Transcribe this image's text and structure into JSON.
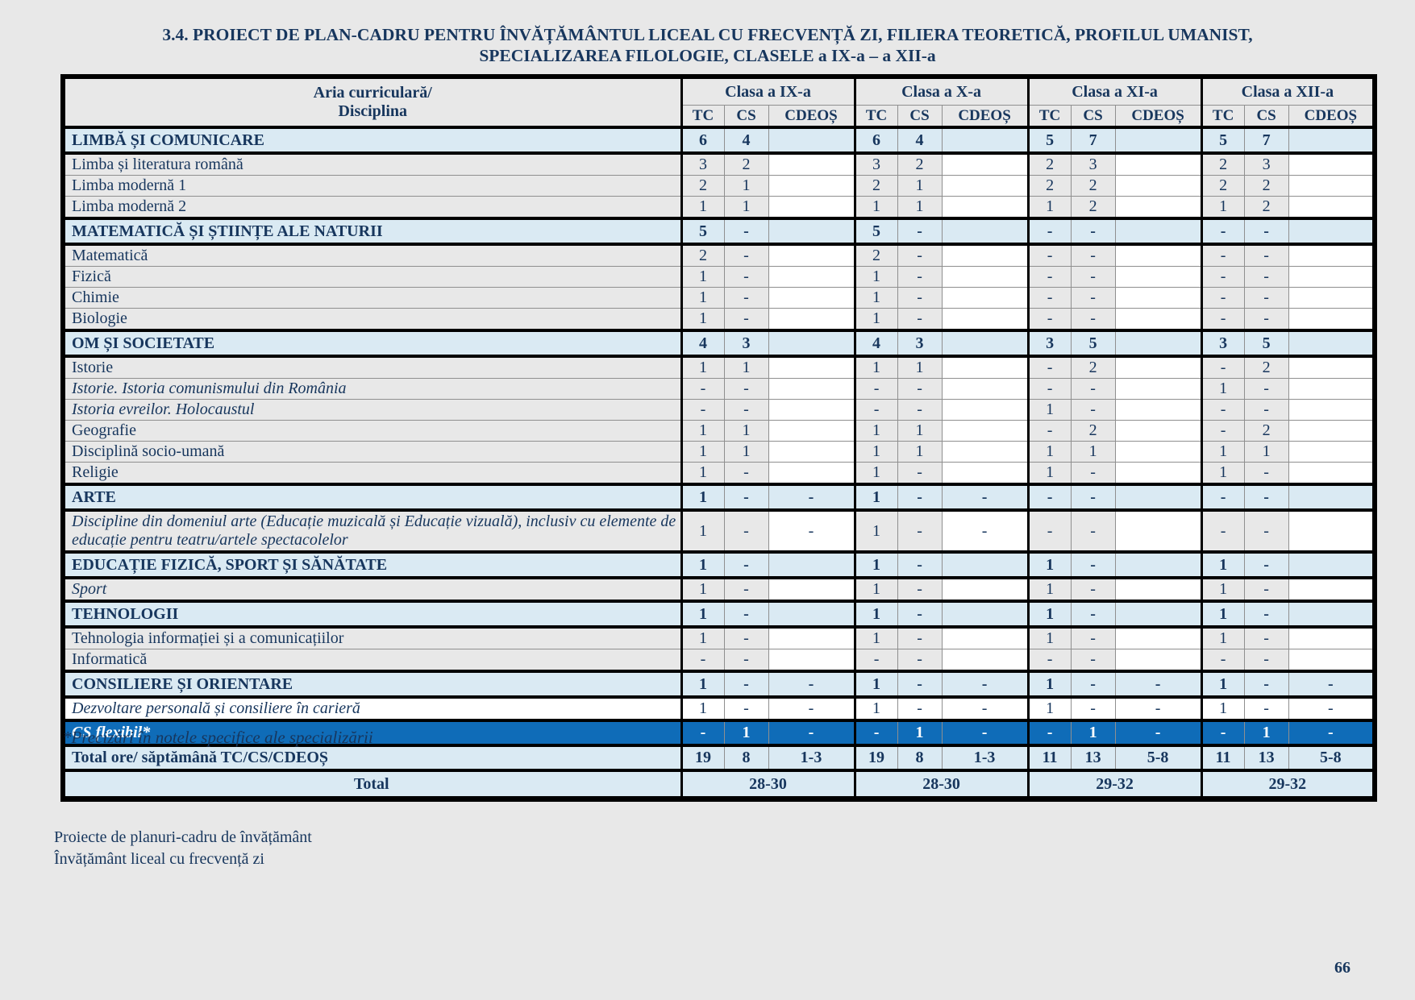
{
  "page": {
    "title_line1": "3.4. PROIECT DE PLAN-CADRU PENTRU ÎNVĂȚĂMÂNTUL LICEAL CU FRECVENȚĂ ZI, FILIERA TEORETICĂ, PROFILUL UMANIST,",
    "title_line2": "SPECIALIZAREA FILOLOGIE, CLASELE a IX-a – a XII-a",
    "footnote": "*Precizări în notele specifice ale specializării",
    "footer_line1": "Proiecte de planuri-cadru de învățământ",
    "footer_line2": "Învățământ liceal cu frecvență zi",
    "page_number": "66"
  },
  "colors": {
    "page_background": "#E8E8E8",
    "text_navy": "#17365D",
    "section_blue": "#DAEAF3",
    "flexibil_blue": "#0F6CB8",
    "row_gray": "#E8E8E8",
    "cdeos_white": "#FFFFFF",
    "thick_border": "#000000",
    "thin_border": "#8F8F8F"
  },
  "table": {
    "corner_header_line1": "Aria curriculară/",
    "corner_header_line2": "Disciplina",
    "class_headers": [
      "Clasa a IX-a",
      "Clasa a X-a",
      "Clasa a XI-a",
      "Clasa a XII-a"
    ],
    "sub_headers": [
      "TC",
      "CS",
      "CDEOȘ"
    ],
    "rows": [
      {
        "label": "LIMBĂ ȘI COMUNICARE",
        "type": "section",
        "sep": true,
        "cells": [
          "6",
          "4",
          "",
          "6",
          "4",
          "",
          "5",
          "7",
          "",
          "5",
          "7",
          ""
        ]
      },
      {
        "label": "Limba și literatura română",
        "type": "regular",
        "sep": true,
        "cells": [
          "3",
          "2",
          "",
          "3",
          "2",
          "",
          "2",
          "3",
          "",
          "2",
          "3",
          ""
        ]
      },
      {
        "label": "Limba modernă 1",
        "type": "regular",
        "sep": false,
        "cells": [
          "2",
          "1",
          "",
          "2",
          "1",
          "",
          "2",
          "2",
          "",
          "2",
          "2",
          ""
        ]
      },
      {
        "label": "Limba modernă 2",
        "type": "regular",
        "sep": false,
        "cells": [
          "1",
          "1",
          "",
          "1",
          "1",
          "",
          "1",
          "2",
          "",
          "1",
          "2",
          ""
        ]
      },
      {
        "label": "MATEMATICĂ ȘI ȘTIINȚE ALE NATURII",
        "type": "section",
        "sep": true,
        "cells": [
          "5",
          "-",
          "",
          "5",
          "-",
          "",
          "-",
          "-",
          "",
          "-",
          "-",
          ""
        ]
      },
      {
        "label": "Matematică",
        "type": "regular",
        "sep": true,
        "cells": [
          "2",
          "-",
          "",
          "2",
          "-",
          "",
          "-",
          "-",
          "",
          "-",
          "-",
          ""
        ]
      },
      {
        "label": "Fizică",
        "type": "regular",
        "sep": false,
        "cells": [
          "1",
          "-",
          "",
          "1",
          "-",
          "",
          "-",
          "-",
          "",
          "-",
          "-",
          ""
        ]
      },
      {
        "label": "Chimie",
        "type": "regular",
        "sep": false,
        "cells": [
          "1",
          "-",
          "",
          "1",
          "-",
          "",
          "-",
          "-",
          "",
          "-",
          "-",
          ""
        ]
      },
      {
        "label": "Biologie",
        "type": "regular",
        "sep": false,
        "cells": [
          "1",
          "-",
          "",
          "1",
          "-",
          "",
          "-",
          "-",
          "",
          "-",
          "-",
          ""
        ]
      },
      {
        "label": "OM ȘI SOCIETATE",
        "type": "section",
        "sep": true,
        "cells": [
          "4",
          "3",
          "",
          "4",
          "3",
          "",
          "3",
          "5",
          "",
          "3",
          "5",
          ""
        ]
      },
      {
        "label": "Istorie",
        "type": "regular",
        "sep": true,
        "cells": [
          "1",
          "1",
          "",
          "1",
          "1",
          "",
          "-",
          "2",
          "",
          "-",
          "2",
          ""
        ]
      },
      {
        "label": "Istorie. Istoria comunismului din România",
        "type": "italic",
        "sep": false,
        "cells": [
          "-",
          "-",
          "",
          "-",
          "-",
          "",
          "-",
          "-",
          "",
          "1",
          "-",
          ""
        ]
      },
      {
        "label": "Istoria evreilor. Holocaustul",
        "type": "italic",
        "sep": false,
        "cells": [
          "-",
          "-",
          "",
          "-",
          "-",
          "",
          "1",
          "-",
          "",
          "-",
          "-",
          ""
        ]
      },
      {
        "label": "Geografie",
        "type": "regular",
        "sep": false,
        "cells": [
          "1",
          "1",
          "",
          "1",
          "1",
          "",
          "-",
          "2",
          "",
          "-",
          "2",
          ""
        ]
      },
      {
        "label": "Disciplină socio-umană",
        "type": "regular",
        "sep": false,
        "cells": [
          "1",
          "1",
          "",
          "1",
          "1",
          "",
          "1",
          "1",
          "",
          "1",
          "1",
          ""
        ]
      },
      {
        "label": "Religie",
        "type": "regular",
        "sep": false,
        "cells": [
          "1",
          "-",
          "",
          "1",
          "-",
          "",
          "1",
          "-",
          "",
          "1",
          "-",
          ""
        ]
      },
      {
        "label": "ARTE",
        "type": "section",
        "sep": true,
        "cells": [
          "1",
          "-",
          "-",
          "1",
          "-",
          "-",
          "-",
          "-",
          "",
          "-",
          "-",
          ""
        ]
      },
      {
        "label": "Discipline din domeniul arte (Educație muzicală și Educație vizuală), inclusiv cu elemente de educație pentru teatru/artele spectacolelor",
        "type": "italic",
        "sep": true,
        "cells": [
          "1",
          "-",
          "-",
          "1",
          "-",
          "-",
          "-",
          "-",
          "",
          "-",
          "-",
          ""
        ]
      },
      {
        "label": "EDUCAȚIE FIZICĂ, SPORT ȘI SĂNĂTATE",
        "type": "section",
        "sep": true,
        "cells": [
          "1",
          "-",
          "",
          "1",
          "-",
          "",
          "1",
          "-",
          "",
          "1",
          "-",
          ""
        ]
      },
      {
        "label": "Sport",
        "type": "italic",
        "sep": true,
        "cells": [
          "1",
          "-",
          "",
          "1",
          "-",
          "",
          "1",
          "-",
          "",
          "1",
          "-",
          ""
        ]
      },
      {
        "label": "TEHNOLOGII",
        "type": "section",
        "sep": true,
        "cells": [
          "1",
          "-",
          "",
          "1",
          "-",
          "",
          "1",
          "-",
          "",
          "1",
          "-",
          ""
        ]
      },
      {
        "label": "Tehnologia informației și a comunicațiilor",
        "type": "regular",
        "sep": true,
        "cells": [
          "1",
          "-",
          "",
          "1",
          "-",
          "",
          "1",
          "-",
          "",
          "1",
          "-",
          ""
        ]
      },
      {
        "label": "Informatică",
        "type": "regular",
        "sep": false,
        "cells": [
          "-",
          "-",
          "",
          "-",
          "-",
          "",
          "-",
          "-",
          "",
          "-",
          "-",
          ""
        ]
      },
      {
        "label": "CONSILIERE ȘI ORIENTARE",
        "type": "section",
        "sep": true,
        "cells": [
          "1",
          "-",
          "-",
          "1",
          "-",
          "-",
          "1",
          "-",
          "-",
          "1",
          "-",
          "-"
        ]
      },
      {
        "label": "Dezvoltare personală și consiliere în carieră",
        "type": "white",
        "sep": true,
        "cells": [
          "1",
          "-",
          "-",
          "1",
          "-",
          "-",
          "1",
          "-",
          "-",
          "1",
          "-",
          "-"
        ]
      },
      {
        "label": "CS flexibil*",
        "type": "flexibil",
        "sep": true,
        "cells": [
          "-",
          "1",
          "-",
          "-",
          "1",
          "-",
          "-",
          "1",
          "-",
          "-",
          "1",
          "-"
        ]
      },
      {
        "label": "Total ore/ săptămână TC/CS/CDEOȘ",
        "type": "totals",
        "sep": true,
        "cells": [
          "19",
          "8",
          "1-3",
          "19",
          "8",
          "1-3",
          "11",
          "13",
          "5-8",
          "11",
          "13",
          "5-8"
        ]
      },
      {
        "label": "Total",
        "type": "grand",
        "sep": true,
        "cells": [
          "28-30",
          "28-30",
          "29-32",
          "29-32"
        ]
      }
    ]
  }
}
